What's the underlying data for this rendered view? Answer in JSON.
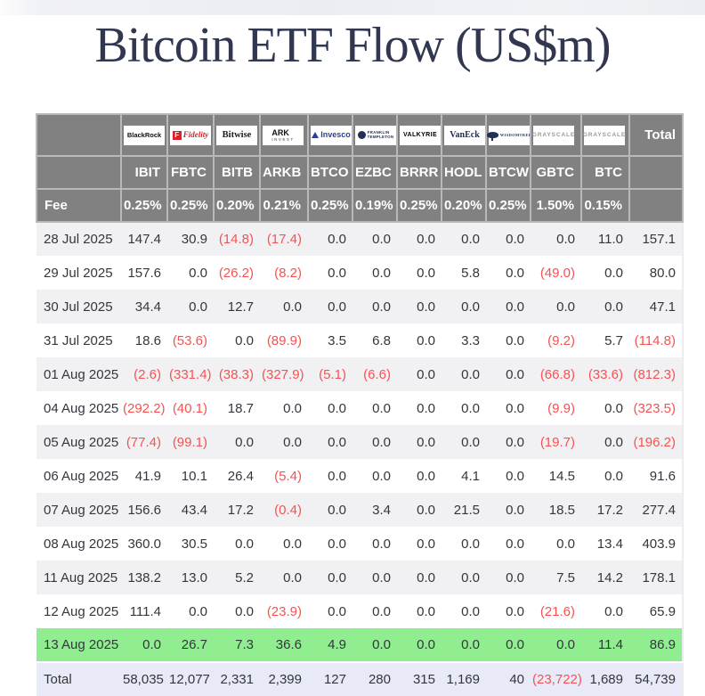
{
  "title": "Bitcoin ETF Flow (US$m)",
  "chart_data": {
    "type": "table",
    "title": "Bitcoin ETF Flow (US$m)",
    "fee_label": "Fee",
    "total_label": "Total",
    "columns": [
      "IBIT",
      "FBTC",
      "BITB",
      "ARKB",
      "BTCO",
      "EZBC",
      "BRRR",
      "HODL",
      "BTCW",
      "GBTC",
      "BTC"
    ],
    "providers": [
      "BlackRock",
      "Fidelity",
      "Bitwise",
      "ARK Invest",
      "Invesco",
      "Franklin Templeton",
      "Valkyrie",
      "VanEck",
      "WisdomTree",
      "Grayscale",
      "Grayscale"
    ],
    "fees": [
      "0.25%",
      "0.25%",
      "0.20%",
      "0.21%",
      "0.25%",
      "0.19%",
      "0.25%",
      "0.20%",
      "0.25%",
      "1.50%",
      "0.15%"
    ],
    "rows": [
      {
        "label": "28 Jul 2025",
        "values": [
          "147.4",
          "30.9",
          "(14.8)",
          "(17.4)",
          "0.0",
          "0.0",
          "0.0",
          "0.0",
          "0.0",
          "0.0",
          "11.0"
        ],
        "total": "157.1"
      },
      {
        "label": "29 Jul 2025",
        "values": [
          "157.6",
          "0.0",
          "(26.2)",
          "(8.2)",
          "0.0",
          "0.0",
          "0.0",
          "5.8",
          "0.0",
          "(49.0)",
          "0.0"
        ],
        "total": "80.0"
      },
      {
        "label": "30 Jul 2025",
        "values": [
          "34.4",
          "0.0",
          "12.7",
          "0.0",
          "0.0",
          "0.0",
          "0.0",
          "0.0",
          "0.0",
          "0.0",
          "0.0"
        ],
        "total": "47.1"
      },
      {
        "label": "31 Jul 2025",
        "values": [
          "18.6",
          "(53.6)",
          "0.0",
          "(89.9)",
          "3.5",
          "6.8",
          "0.0",
          "3.3",
          "0.0",
          "(9.2)",
          "5.7"
        ],
        "total": "(114.8)"
      },
      {
        "label": "01 Aug 2025",
        "values": [
          "(2.6)",
          "(331.4)",
          "(38.3)",
          "(327.9)",
          "(5.1)",
          "(6.6)",
          "0.0",
          "0.0",
          "0.0",
          "(66.8)",
          "(33.6)"
        ],
        "total": "(812.3)"
      },
      {
        "label": "04 Aug 2025",
        "values": [
          "(292.2)",
          "(40.1)",
          "18.7",
          "0.0",
          "0.0",
          "0.0",
          "0.0",
          "0.0",
          "0.0",
          "(9.9)",
          "0.0"
        ],
        "total": "(323.5)"
      },
      {
        "label": "05 Aug 2025",
        "values": [
          "(77.4)",
          "(99.1)",
          "0.0",
          "0.0",
          "0.0",
          "0.0",
          "0.0",
          "0.0",
          "0.0",
          "(19.7)",
          "0.0"
        ],
        "total": "(196.2)"
      },
      {
        "label": "06 Aug 2025",
        "values": [
          "41.9",
          "10.1",
          "26.4",
          "(5.4)",
          "0.0",
          "0.0",
          "0.0",
          "4.1",
          "0.0",
          "14.5",
          "0.0"
        ],
        "total": "91.6"
      },
      {
        "label": "07 Aug 2025",
        "values": [
          "156.6",
          "43.4",
          "17.2",
          "(0.4)",
          "0.0",
          "3.4",
          "0.0",
          "21.5",
          "0.0",
          "18.5",
          "17.2"
        ],
        "total": "277.4"
      },
      {
        "label": "08 Aug 2025",
        "values": [
          "360.0",
          "30.5",
          "0.0",
          "0.0",
          "0.0",
          "0.0",
          "0.0",
          "0.0",
          "0.0",
          "0.0",
          "13.4"
        ],
        "total": "403.9"
      },
      {
        "label": "11 Aug 2025",
        "values": [
          "138.2",
          "13.0",
          "5.2",
          "0.0",
          "0.0",
          "0.0",
          "0.0",
          "0.0",
          "0.0",
          "7.5",
          "14.2"
        ],
        "total": "178.1"
      },
      {
        "label": "12 Aug 2025",
        "values": [
          "111.4",
          "0.0",
          "0.0",
          "(23.9)",
          "0.0",
          "0.0",
          "0.0",
          "0.0",
          "0.0",
          "(21.6)",
          "0.0"
        ],
        "total": "65.9"
      },
      {
        "label": "13 Aug 2025",
        "values": [
          "0.0",
          "26.7",
          "7.3",
          "36.6",
          "4.9",
          "0.0",
          "0.0",
          "0.0",
          "0.0",
          "0.0",
          "11.4"
        ],
        "total": "86.9",
        "highlight": true
      }
    ],
    "total_row": {
      "label": "Total",
      "values": [
        "58,035",
        "12,077",
        "2,331",
        "2,399",
        "127",
        "280",
        "315",
        "1,169",
        "40",
        "(23,722)",
        "1,689"
      ],
      "total": "54,739"
    }
  },
  "logos": [
    {
      "style": "blackrock",
      "text": "BlackRock",
      "color": "#101010"
    },
    {
      "style": "fidelity",
      "icon": "fidelity",
      "icon_text": "F",
      "text": "Fidelity",
      "color": "#d8232a"
    },
    {
      "style": "bitwise",
      "text": "Bitwise",
      "color": "#1d1d1f"
    },
    {
      "style": "ark",
      "text": "ARK",
      "sub": "INVEST",
      "color": "#111111"
    },
    {
      "style": "invesco",
      "icon": "invesco",
      "text": "Invesco",
      "color": "#2a3f9d"
    },
    {
      "style": "franklin",
      "icon": "franklin",
      "text": "FRANKLIN",
      "sub": "TEMPLETON",
      "color": "#223055",
      "sub_color": "#223055"
    },
    {
      "style": "valkyrie",
      "text": "VALKYRIE",
      "color": "#000000"
    },
    {
      "style": "vaneck",
      "text": "VanEck",
      "color": "#1c2c54"
    },
    {
      "style": "wisdomtree",
      "icon": "wisdomtree",
      "text": "WISDOMTREE",
      "color": "#223055"
    },
    {
      "style": "grayscale",
      "text": "GRAYSCALE",
      "color": "#9a9a9a"
    },
    {
      "style": "grayscale",
      "text": "GRAYSCALE",
      "color": "#9a9a9a"
    }
  ],
  "colors": {
    "header_bg": "#818181",
    "header_border": "#b9b9b9",
    "stripe": "#f1f1f3",
    "highlight_green": "#90ee90",
    "total_row_bg": "#e8ebf7",
    "negative_red": "#f85151",
    "title_navy": "#313751",
    "text": "#33363c"
  }
}
